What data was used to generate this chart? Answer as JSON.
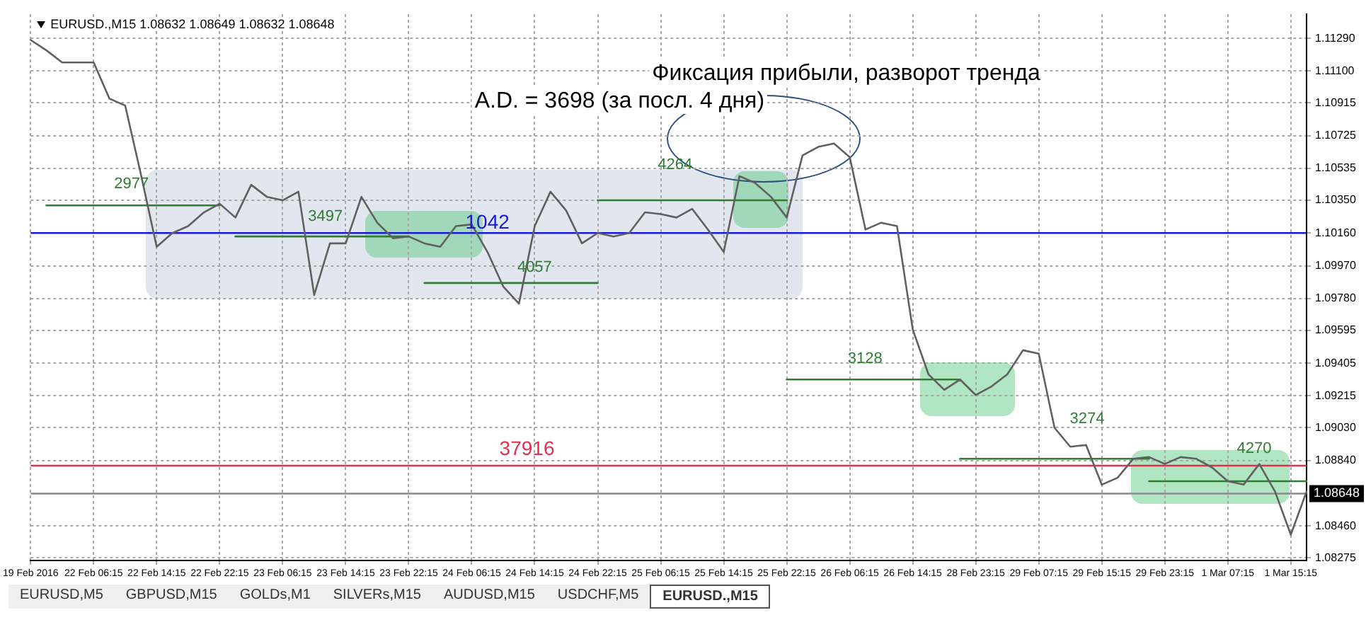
{
  "chart_data": {
    "type": "line",
    "title": "EURUSD.,M15  1.08632 1.08649 1.08632 1.08648",
    "categories": [
      "19 Feb 2016",
      null,
      null,
      null,
      "22 Feb 06:15",
      null,
      null,
      null,
      "22 Feb 14:15",
      null,
      null,
      null,
      "22 Feb 22:15",
      null,
      null,
      null,
      "23 Feb 06:15",
      null,
      null,
      null,
      "23 Feb 14:15",
      null,
      null,
      null,
      "23 Feb 22:15",
      null,
      null,
      null,
      "24 Feb 06:15",
      null,
      null,
      null,
      "24 Feb 14:15",
      null,
      null,
      null,
      "24 Feb 22:15",
      null,
      null,
      null,
      "25 Feb 06:15",
      null,
      null,
      null,
      "25 Feb 14:15",
      null,
      null,
      null,
      "25 Feb 22:15",
      null,
      null,
      null,
      "26 Feb 06:15",
      null,
      null,
      null,
      "26 Feb 14:15",
      null,
      null,
      null,
      "28 Feb 23:15",
      null,
      null,
      null,
      "29 Feb 07:15",
      null,
      null,
      null,
      "29 Feb 15:15",
      null,
      null,
      null,
      "29 Feb 23:15",
      null,
      null,
      null,
      "1 Mar 07:15",
      null,
      null,
      null,
      "1 Mar 15:15",
      null
    ],
    "ylim": [
      1.0826,
      1.1143
    ],
    "yticks": [
      {
        "value": 1.1129,
        "label": "1.11290"
      },
      {
        "value": 1.111,
        "label": "1.11100"
      },
      1.10915,
      1.10725,
      1.10535,
      {
        "value": 1.1035,
        "label": "1.10350"
      },
      {
        "value": 1.1016,
        "label": "1.10160"
      },
      {
        "value": 1.0997,
        "label": "1.09970"
      },
      {
        "value": 1.0978,
        "label": "1.09780"
      },
      1.09595,
      1.09405,
      1.09215,
      {
        "value": 1.0903,
        "label": "1.09030"
      },
      {
        "value": 1.0884,
        "label": "1.08840"
      },
      {
        "value": 1.0846,
        "label": "1.08460"
      },
      1.08275
    ],
    "grid": true,
    "legend": false,
    "marker": "none",
    "line_style": "solid",
    "series": [
      {
        "color": "#606060",
        "values": [
          1.1128,
          1.1122,
          1.1115,
          1.1115,
          1.1115,
          1.1094,
          1.109,
          1.105,
          1.1008,
          1.1016,
          1.102,
          1.1028,
          1.1033,
          1.1025,
          1.1044,
          1.1037,
          1.1035,
          1.104,
          1.098,
          1.101,
          1.101,
          1.1037,
          1.1022,
          1.1013,
          1.1014,
          1.101,
          1.1008,
          1.102,
          1.1021,
          1.1005,
          1.0985,
          1.0975,
          1.102,
          1.104,
          1.1029,
          1.101,
          1.1016,
          1.1014,
          1.1016,
          1.1028,
          1.1027,
          1.1025,
          1.103,
          1.1018,
          1.1005,
          1.1049,
          1.1045,
          1.1037,
          1.1025,
          1.1061,
          1.1066,
          1.1068,
          1.106,
          1.1018,
          1.1022,
          1.102,
          1.096,
          1.0934,
          1.0925,
          1.0931,
          1.0922,
          1.0927,
          1.0934,
          1.0948,
          1.0946,
          1.0903,
          1.0892,
          1.0893,
          1.087,
          1.0874,
          1.0885,
          1.0886,
          1.0882,
          1.0886,
          1.0885,
          1.088,
          1.0872,
          1.087,
          1.0882,
          1.0866,
          1.0841,
          1.0866
        ]
      },
      {
        "color": "#2e7d32",
        "values": [
          null,
          1.1032,
          1.1032,
          1.1032,
          1.1032,
          1.1032,
          1.1032,
          1.1032,
          1.1032,
          1.1032,
          1.1032,
          1.1032,
          1.1032,
          null,
          null,
          null,
          null,
          null,
          null,
          null,
          null,
          null,
          null,
          null,
          null,
          null,
          null,
          null,
          null,
          null,
          null,
          null,
          null,
          null,
          null,
          null,
          null,
          null,
          null,
          null,
          null,
          null,
          null,
          null,
          null,
          null,
          null,
          null,
          null,
          null,
          null,
          null,
          null,
          null,
          null,
          null,
          null,
          null,
          null,
          null,
          null,
          null,
          null,
          null,
          null,
          null,
          null,
          null,
          null,
          null,
          null,
          null,
          null,
          null,
          null,
          null,
          null,
          null,
          null,
          null,
          null,
          null
        ]
      },
      {
        "color": "#2e7d32",
        "values": [
          null,
          null,
          null,
          null,
          null,
          null,
          null,
          null,
          null,
          null,
          null,
          null,
          null,
          1.1014,
          1.1014,
          1.1014,
          1.1014,
          1.1014,
          1.1014,
          1.1014,
          1.1014,
          1.1014,
          1.1014,
          1.1014,
          1.1014,
          null,
          null,
          null,
          null,
          null,
          null,
          null,
          null,
          null,
          null,
          null,
          null,
          null,
          null,
          null,
          null,
          null,
          null,
          null,
          null,
          null,
          null,
          null,
          null,
          null,
          null,
          null,
          null,
          null,
          null,
          null,
          null,
          null,
          null,
          null,
          null,
          null,
          null,
          null,
          null,
          null,
          null,
          null,
          null,
          null,
          null,
          null,
          null,
          null,
          null,
          null,
          null,
          null,
          null,
          null,
          null,
          null
        ]
      },
      {
        "color": "#2e7d32",
        "values": [
          null,
          null,
          null,
          null,
          null,
          null,
          null,
          null,
          null,
          null,
          null,
          null,
          null,
          null,
          null,
          null,
          null,
          null,
          null,
          null,
          null,
          null,
          null,
          null,
          null,
          1.0987,
          1.0987,
          1.0987,
          1.0987,
          1.0987,
          1.0987,
          1.0987,
          1.0987,
          1.0987,
          1.0987,
          1.0987,
          1.0987,
          null,
          null,
          null,
          null,
          null,
          null,
          null,
          null,
          null,
          null,
          null,
          null,
          null,
          null,
          null,
          null,
          null,
          null,
          null,
          null,
          null,
          null,
          null,
          null,
          null,
          null,
          null,
          null,
          null,
          null,
          null,
          null,
          null,
          null,
          null,
          null,
          null,
          null,
          null,
          null,
          null,
          null,
          null,
          null,
          null
        ]
      },
      {
        "color": "#2e7d32",
        "values": [
          null,
          null,
          null,
          null,
          null,
          null,
          null,
          null,
          null,
          null,
          null,
          null,
          null,
          null,
          null,
          null,
          null,
          null,
          null,
          null,
          null,
          null,
          null,
          null,
          null,
          null,
          null,
          null,
          null,
          null,
          null,
          null,
          null,
          null,
          null,
          null,
          1.1035,
          1.1035,
          1.1035,
          1.1035,
          1.1035,
          1.1035,
          1.1035,
          1.1035,
          1.1035,
          1.1035,
          1.1035,
          1.1035,
          1.1035,
          null,
          null,
          null,
          null,
          null,
          null,
          null,
          null,
          null,
          null,
          null,
          null,
          null,
          null,
          null,
          null,
          null,
          null,
          null,
          null,
          null,
          null,
          null,
          null,
          null,
          null,
          null,
          null,
          null,
          null,
          null,
          null,
          null
        ]
      },
      {
        "color": "#2e7d32",
        "values": [
          null,
          null,
          null,
          null,
          null,
          null,
          null,
          null,
          null,
          null,
          null,
          null,
          null,
          null,
          null,
          null,
          null,
          null,
          null,
          null,
          null,
          null,
          null,
          null,
          null,
          null,
          null,
          null,
          null,
          null,
          null,
          null,
          null,
          null,
          null,
          null,
          null,
          null,
          null,
          null,
          null,
          null,
          null,
          null,
          null,
          null,
          null,
          null,
          1.0931,
          1.0931,
          1.0931,
          1.0931,
          1.0931,
          1.0931,
          1.0931,
          1.0931,
          1.0931,
          1.0931,
          1.0931,
          1.0931,
          null,
          null,
          null,
          null,
          null,
          null,
          null,
          null,
          null,
          null,
          null,
          null,
          null,
          null,
          null,
          null,
          null,
          null,
          null,
          null,
          null,
          null
        ]
      },
      {
        "color": "#2e7d32",
        "values": [
          null,
          null,
          null,
          null,
          null,
          null,
          null,
          null,
          null,
          null,
          null,
          null,
          null,
          null,
          null,
          null,
          null,
          null,
          null,
          null,
          null,
          null,
          null,
          null,
          null,
          null,
          null,
          null,
          null,
          null,
          null,
          null,
          null,
          null,
          null,
          null,
          null,
          null,
          null,
          null,
          null,
          null,
          null,
          null,
          null,
          null,
          null,
          null,
          null,
          null,
          null,
          null,
          null,
          null,
          null,
          null,
          null,
          null,
          null,
          1.0885,
          1.0885,
          1.0885,
          1.0885,
          1.0885,
          1.0885,
          1.0885,
          1.0885,
          1.0885,
          1.0885,
          1.0885,
          1.0885,
          1.0885,
          null,
          null,
          null,
          null,
          null,
          null,
          null,
          null,
          null,
          null
        ]
      },
      {
        "color": "#2e7d32",
        "values": [
          null,
          null,
          null,
          null,
          null,
          null,
          null,
          null,
          null,
          null,
          null,
          null,
          null,
          null,
          null,
          null,
          null,
          null,
          null,
          null,
          null,
          null,
          null,
          null,
          null,
          null,
          null,
          null,
          null,
          null,
          null,
          null,
          null,
          null,
          null,
          null,
          null,
          null,
          null,
          null,
          null,
          null,
          null,
          null,
          null,
          null,
          null,
          null,
          null,
          null,
          null,
          null,
          null,
          null,
          null,
          null,
          null,
          null,
          null,
          null,
          null,
          null,
          null,
          null,
          null,
          null,
          null,
          null,
          null,
          null,
          null,
          1.0872,
          1.0872,
          1.0872,
          1.0872,
          1.0872,
          1.0872,
          1.0872,
          1.0872,
          1.0872,
          1.0872,
          1.0872
        ]
      }
    ],
    "ref_lines": [
      {
        "axis": "y",
        "value": 1.1016,
        "color": "#1a1ad6"
      },
      {
        "axis": "y",
        "value": 1.0881,
        "color": "#e0304e"
      },
      {
        "axis": "y",
        "value": 1.08648,
        "label": "1.08648",
        "color": "#8a8a8a"
      }
    ],
    "annotations": [
      "Фиксация прибыли, разворот тренда",
      "A.D. = 3698 (за посл. 4 дня)",
      "2977",
      "3497",
      "4057",
      "4264",
      "3128",
      "3274",
      "4270",
      "1042",
      "37916",
      "EURUSD,M5",
      "GBPUSD,M15",
      "GOLDs,M1",
      "SILVERs,M15",
      "AUDUSD,M15",
      "USDCHF,M5",
      "EURUSD.,M15"
    ]
  }
}
